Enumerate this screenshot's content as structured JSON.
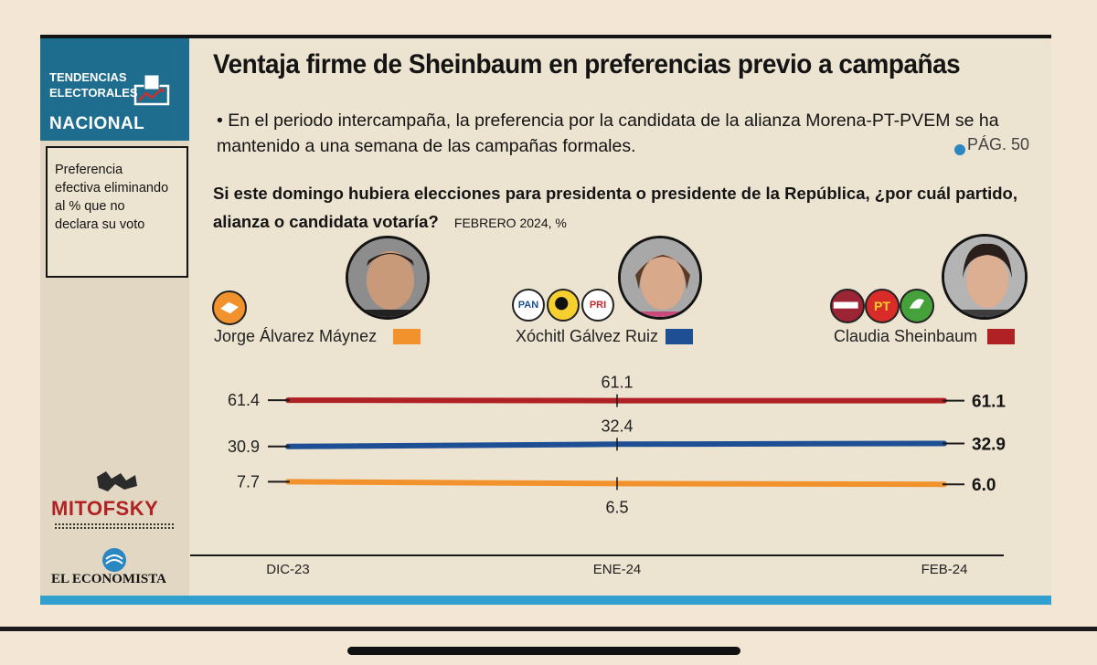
{
  "header": {
    "section_line1": "TENDENCIAS",
    "section_line2": "ELECTORALES",
    "section_name": "NACIONAL",
    "title": "Ventaja firme de Sheinbaum en preferencias previo a campañas",
    "bullet_text": "• En el periodo intercampaña, la preferencia por la candidata de la alianza Morena-PT-PVEM se ha mantenido a una semana de las campañas formales.",
    "page_ref": "PÁG. 50"
  },
  "sidebar": {
    "note": "Preferencia efectiva eliminando al % que no declara su voto",
    "logo_mitofsky": "MITOFSKY",
    "logo_economista": "EL ECONOMISTA"
  },
  "question": {
    "text": "Si este domingo hubiera elecciones para presidenta o presidente de la República, ¿por cuál partido, alianza o candidata votaría?",
    "date": "FEBRERO 2024, %"
  },
  "candidates": [
    {
      "name": "Jorge Álvarez Máynez",
      "color": "#f2922d",
      "party_logos": [
        "MC"
      ]
    },
    {
      "name": "Xóchitl Gálvez Ruiz",
      "color": "#1e4e93",
      "party_logos": [
        "PAN",
        "PRD",
        "PRI"
      ]
    },
    {
      "name": "Claudia Sheinbaum",
      "color": "#b02126",
      "party_logos": [
        "MORENA",
        "PT",
        "PVEM"
      ]
    }
  ],
  "chart_data": {
    "type": "line",
    "x": [
      "DIC-23",
      "ENE-24",
      "FEB-24"
    ],
    "series": [
      {
        "name": "Claudia Sheinbaum",
        "color": "#b02126",
        "values": [
          61.4,
          61.1,
          61.1
        ],
        "labels": [
          "61.4",
          "61.1",
          "61.1"
        ]
      },
      {
        "name": "Xóchitl Gálvez Ruiz",
        "color": "#1e4e93",
        "values": [
          30.9,
          32.4,
          32.9
        ],
        "labels": [
          "30.9",
          "32.4",
          "32.9"
        ]
      },
      {
        "name": "Jorge Álvarez Máynez",
        "color": "#f2922d",
        "values": [
          7.7,
          6.5,
          6.0
        ],
        "labels": [
          "7.7",
          "6.5",
          "6.0"
        ]
      }
    ],
    "grid": false
  }
}
